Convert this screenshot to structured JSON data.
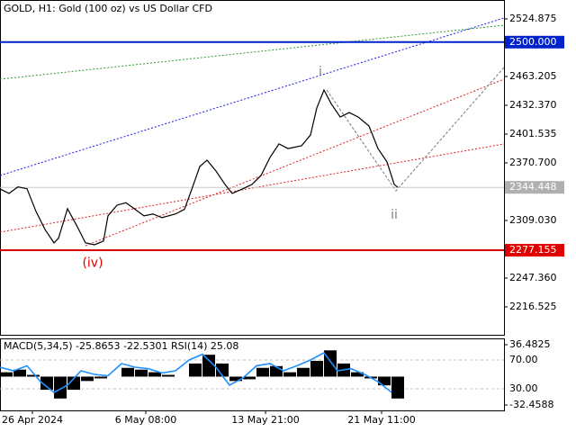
{
  "chart_data": [
    {
      "type": "line",
      "title": "GOLD, H1:  Gold (100 oz) vs US Dollar CFD",
      "x": [
        0,
        2.5,
        5,
        7.5,
        10,
        12.5,
        15,
        16.25,
        18.75,
        21.25,
        23.75,
        26.25,
        28.75,
        30,
        32.5,
        35,
        37.5,
        40,
        42.5,
        45,
        48.75,
        51.25,
        53.75,
        55.5,
        57.5,
        60,
        62.5,
        64.5,
        67.5,
        70,
        72.5,
        75,
        77.5,
        80,
        83.75,
        86.25,
        88,
        90,
        92,
        94.5,
        97,
        99.5,
        102.5,
        105,
        107.5,
        109.5,
        110.5
      ],
      "series": [
        {
          "color": "#000000",
          "values": [
            2342.8,
            2338.0,
            2345.0,
            2343.0,
            2318.7,
            2299.4,
            2285.0,
            2290.0,
            2321.6,
            2304.0,
            2285.0,
            2283.0,
            2287.0,
            2314.0,
            2325.4,
            2328.0,
            2321.0,
            2314.0,
            2316.0,
            2312.0,
            2316.0,
            2321.0,
            2347.6,
            2366.8,
            2373.6,
            2362.0,
            2347.6,
            2338.0,
            2343.0,
            2347.6,
            2357.2,
            2376.5,
            2391.0,
            2386.0,
            2389.0,
            2400.6,
            2429.5,
            2448.7,
            2434.0,
            2419.8,
            2424.6,
            2419.8,
            2410.2,
            2386.0,
            2371.7,
            2347.6,
            2344.448
          ]
        }
      ],
      "xlim": [
        0,
        140
      ],
      "xticks": [
        {
          "value": 9,
          "label": "26 Apr 2024"
        },
        {
          "value": 40.5,
          "label": "6 May 08:00"
        },
        {
          "value": 73.75,
          "label": "13 May 21:00"
        },
        {
          "value": 106,
          "label": "21 May 11:00"
        }
      ],
      "ylim": [
        2186.6,
        2545.1
      ],
      "yticks": [
        2524.875,
        2463.205,
        {
          "value": 2432.37,
          "label": "2432.370"
        },
        2401.535,
        {
          "value": 2370.7,
          "label": "2370.700"
        },
        {
          "value": 2309.03,
          "label": "2309.030"
        },
        {
          "value": 2247.36,
          "label": "2247.360"
        },
        2216.525
      ],
      "levels": [
        {
          "value": 2500,
          "label": "2500.000",
          "color": "#0022cc"
        },
        {
          "value": 2277.155,
          "label": "2277.155",
          "color": "#e00000"
        },
        {
          "value": 2344.448,
          "label": "2344.448",
          "color": "#b0b0b0"
        }
      ],
      "annotations": [
        {
          "text": "i",
          "x": 89,
          "y": 2468,
          "color": "#808080"
        },
        {
          "text": "ii",
          "x": 109.5,
          "y": 2315,
          "color": "#808080"
        },
        {
          "text": "(iv)",
          "x": 25.75,
          "y": 2263,
          "color": "#e00000"
        }
      ]
    },
    {
      "type": "bar",
      "title": "MACD(5,34,5) -25.8653 -22.5301 RSI(14) 25.08",
      "x": [
        0,
        3.75,
        7.5,
        11.25,
        15,
        18.75,
        22.5,
        26.25,
        30,
        33.75,
        37.5,
        41.25,
        45,
        48.75,
        52.5,
        56.25,
        60,
        63.75,
        67.5,
        71.25,
        75,
        78.75,
        82.5,
        86.25,
        90,
        93.75,
        97.5,
        101.25,
        105,
        108.75
      ],
      "series": [
        {
          "color": "#000000",
          "values": [
            5,
            8,
            2,
            -15,
            -25,
            -15,
            -5,
            -2,
            0,
            10,
            8,
            5,
            2,
            0,
            15,
            25,
            15,
            -5,
            -3,
            10,
            12,
            5,
            10,
            18,
            30,
            15,
            5,
            -2,
            -10,
            -25
          ]
        },
        {
          "color": "#1e90ff",
          "axis": "y2",
          "values": [
            60,
            55,
            62,
            40,
            25,
            35,
            55,
            50,
            48,
            65,
            60,
            58,
            52,
            55,
            70,
            78,
            60,
            35,
            45,
            62,
            65,
            55,
            62,
            70,
            80,
            55,
            58,
            50,
            40,
            25.08
          ]
        }
      ],
      "xlim": [
        0,
        140
      ],
      "ylim": [
        -38.6,
        43.7
      ],
      "yticks": [
        36.4825,
        -32.4588
      ],
      "y2lim": [
        0,
        100
      ],
      "y2ticks": [
        {
          "value": 70,
          "label": "70.00"
        },
        {
          "value": 30,
          "label": "30.00"
        }
      ]
    }
  ]
}
